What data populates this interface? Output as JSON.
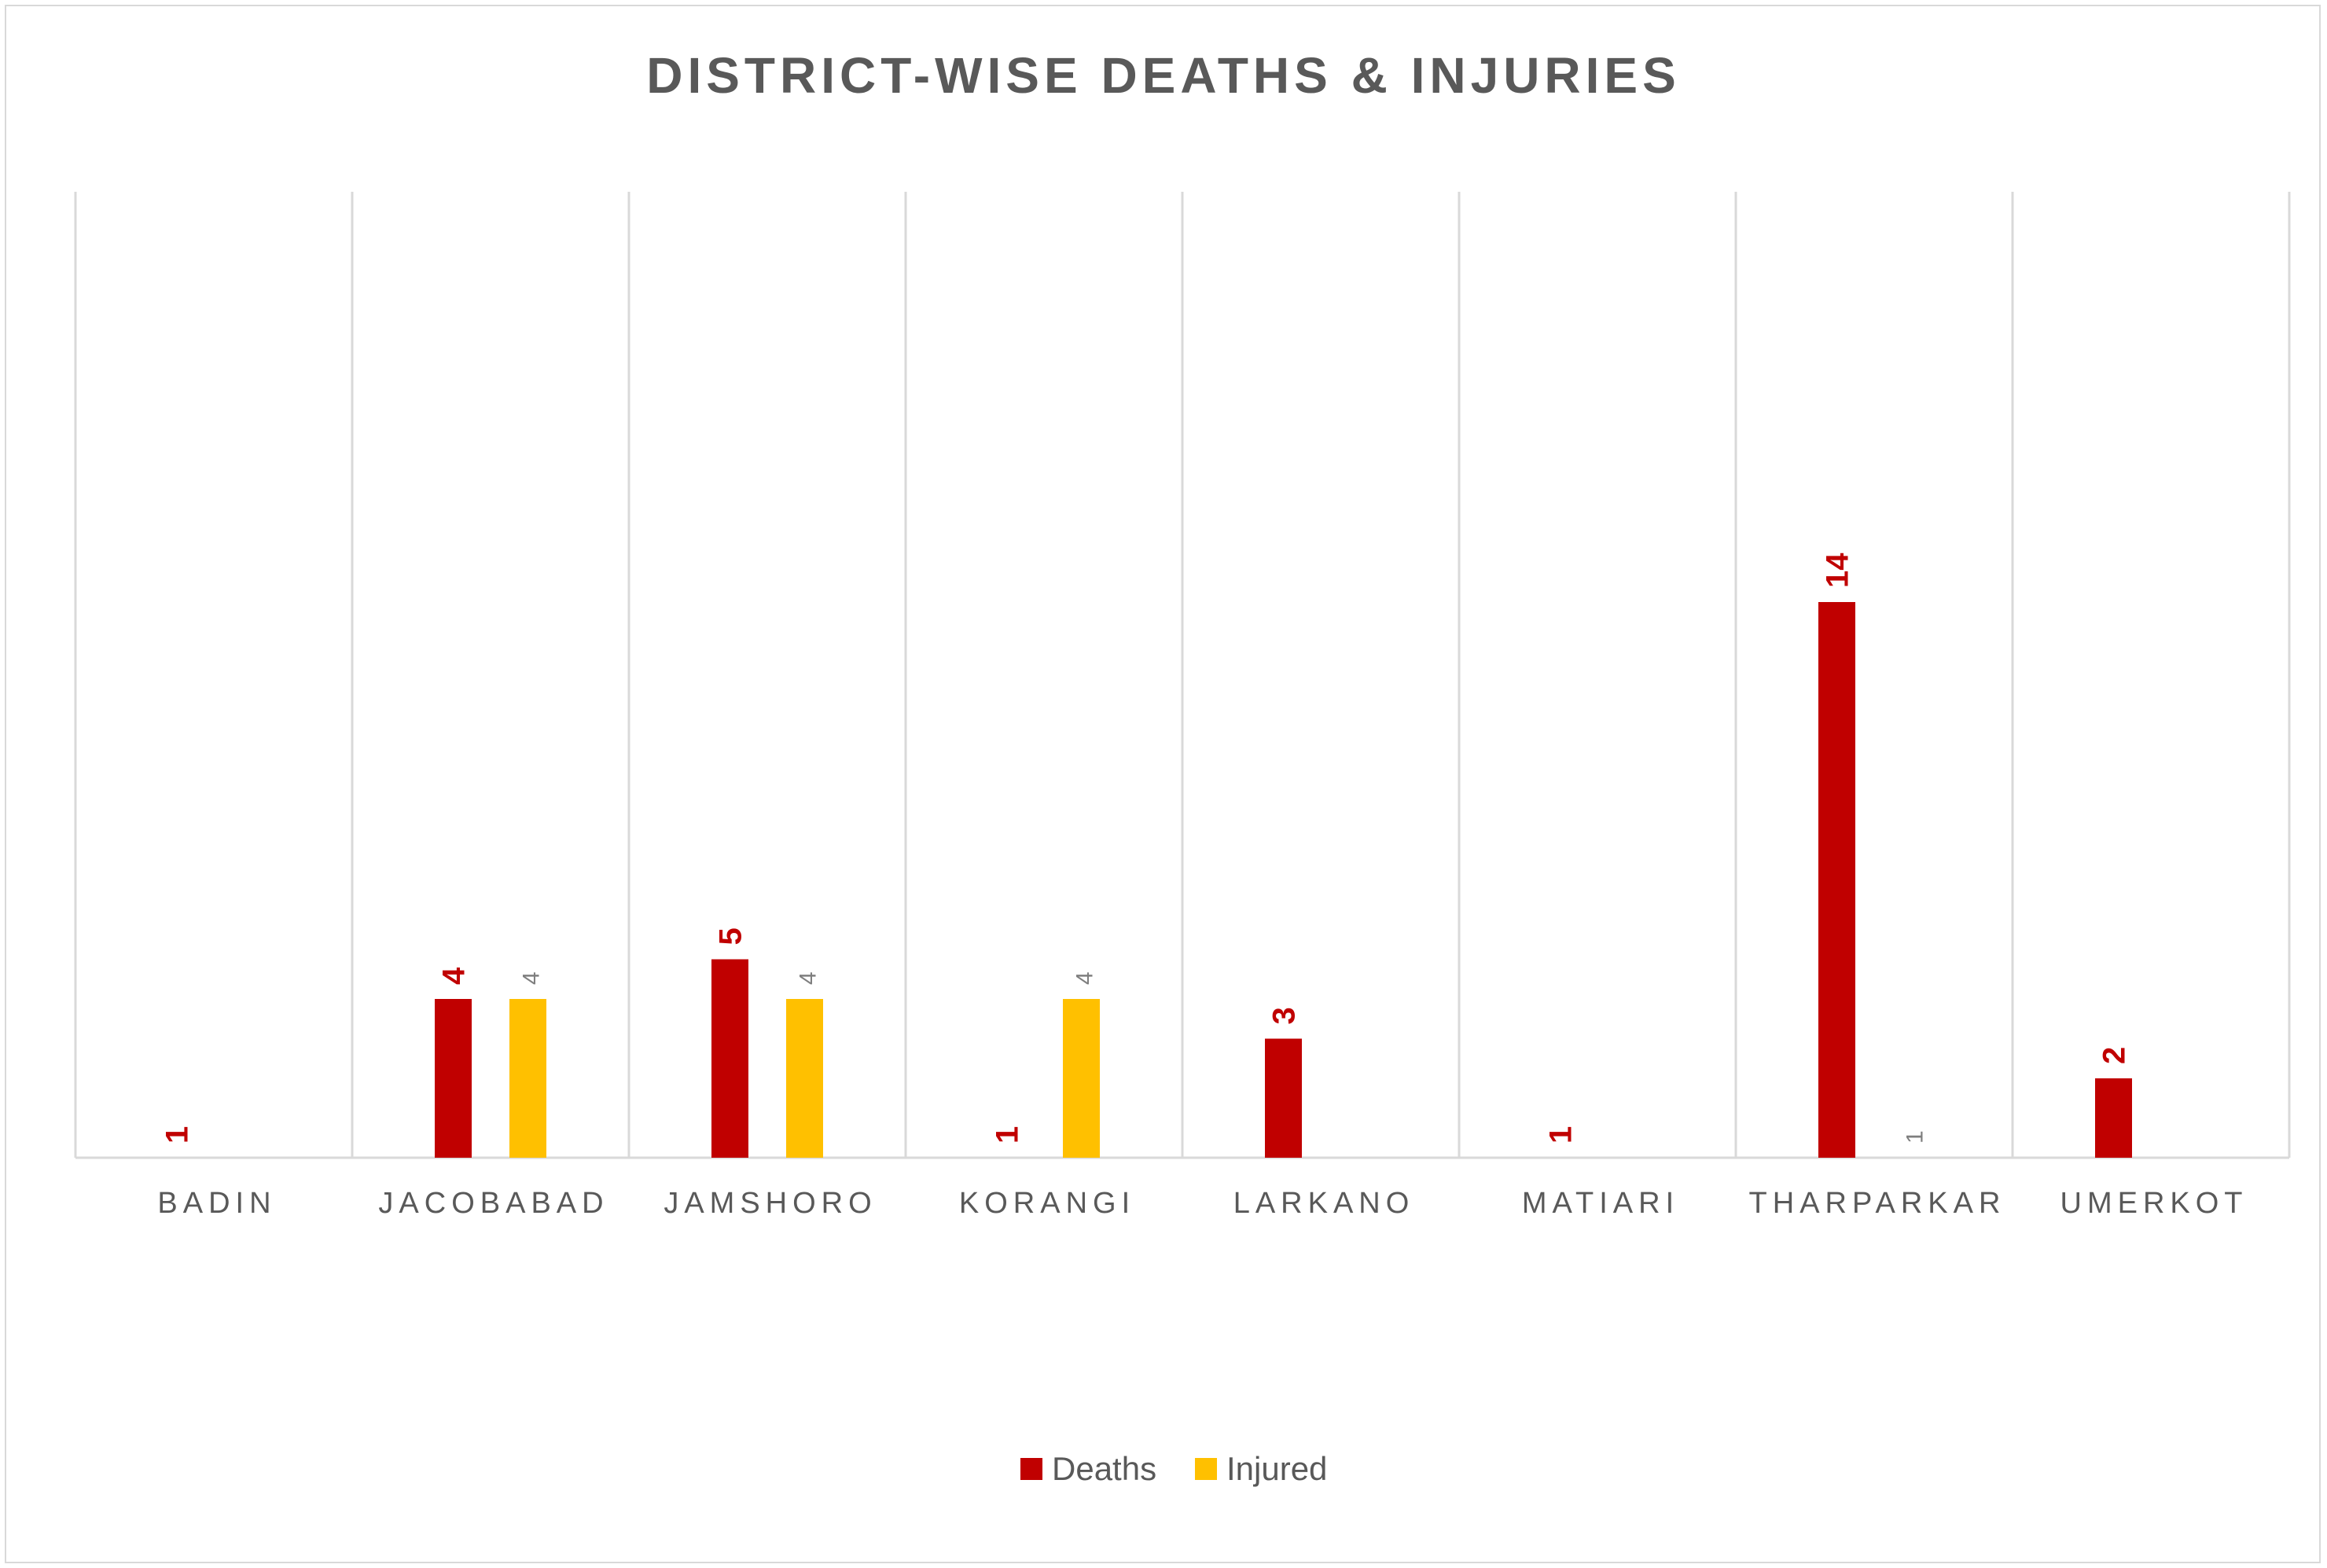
{
  "chart_data": {
    "type": "bar",
    "title": "DISTRICT-WISE DEATHS & INJURIES",
    "xlabel": "",
    "ylabel": "",
    "categories": [
      "BADIN",
      "JACOBABAD",
      "JAMSHORO",
      "KORANGI",
      "LARKANO",
      "MATIARI",
      "THARPARKAR",
      "UMERKOT"
    ],
    "series": [
      {
        "name": "Deaths",
        "values": [
          1,
          4,
          5,
          1,
          3,
          1,
          14,
          2
        ],
        "color": "#c00000"
      },
      {
        "name": "Injured",
        "values": [
          null,
          4,
          4,
          4,
          null,
          null,
          1,
          null
        ],
        "color": "#ffc000"
      }
    ],
    "ylim": [
      0,
      20
    ],
    "grid": "vertical category separators",
    "legend_position": "bottom",
    "data_labels": true,
    "data_label_colors": {
      "Deaths": "#c00000",
      "Injured": "#7f7f7f"
    }
  }
}
